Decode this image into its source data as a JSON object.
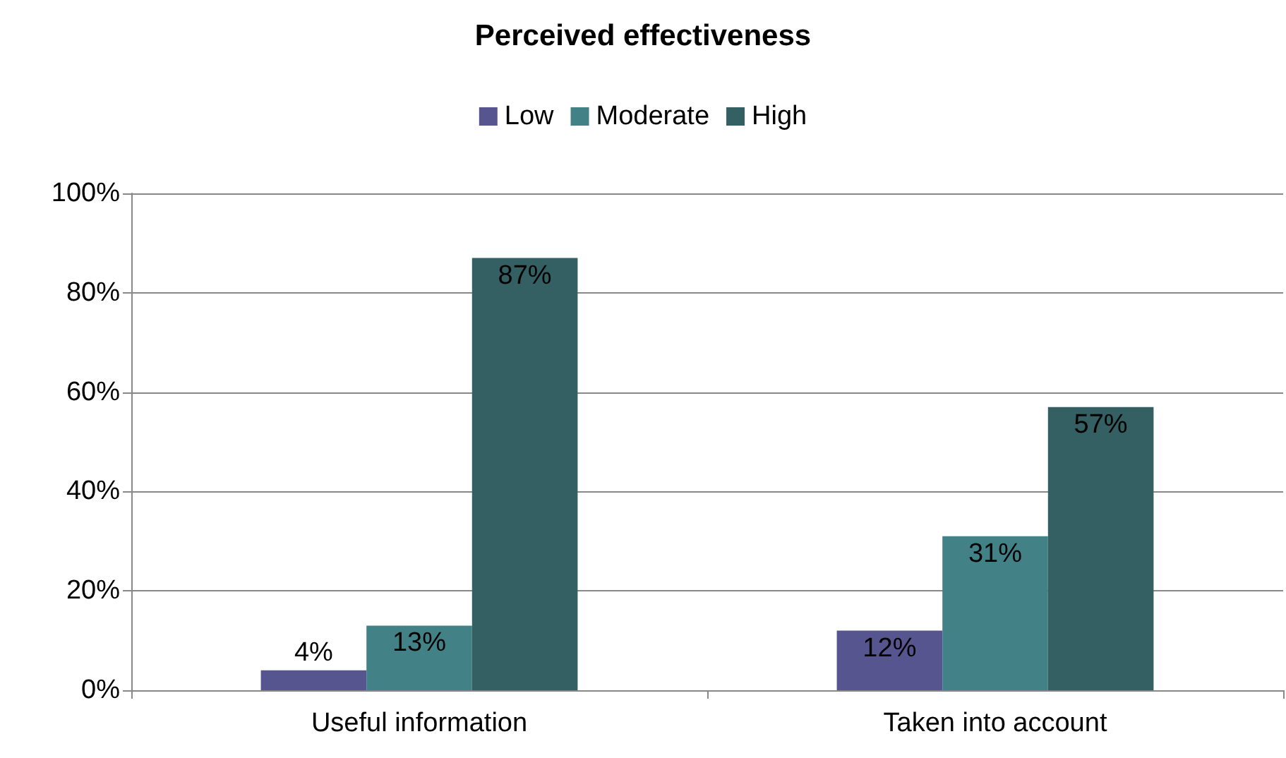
{
  "chart_data": {
    "type": "bar",
    "title": "Perceived effectiveness",
    "categories": [
      "Useful information",
      "Taken into account"
    ],
    "series": [
      {
        "name": "Low",
        "color": "#575590",
        "values": [
          4,
          12
        ],
        "value_labels": [
          "4%",
          "12%"
        ]
      },
      {
        "name": "Moderate",
        "color": "#428287",
        "values": [
          13,
          31
        ],
        "value_labels": [
          "13%",
          "31%"
        ]
      },
      {
        "name": "High",
        "color": "#345f63",
        "values": [
          87,
          57
        ],
        "value_labels": [
          "87%",
          "57%"
        ]
      }
    ],
    "ylim": [
      0,
      100
    ],
    "yticks": [
      {
        "value": 0,
        "label": "0%"
      },
      {
        "value": 20,
        "label": "20%"
      },
      {
        "value": 40,
        "label": "40%"
      },
      {
        "value": 60,
        "label": "60%"
      },
      {
        "value": 80,
        "label": "80%"
      },
      {
        "value": 100,
        "label": "100%"
      }
    ],
    "grid": "y",
    "legend": "top"
  }
}
